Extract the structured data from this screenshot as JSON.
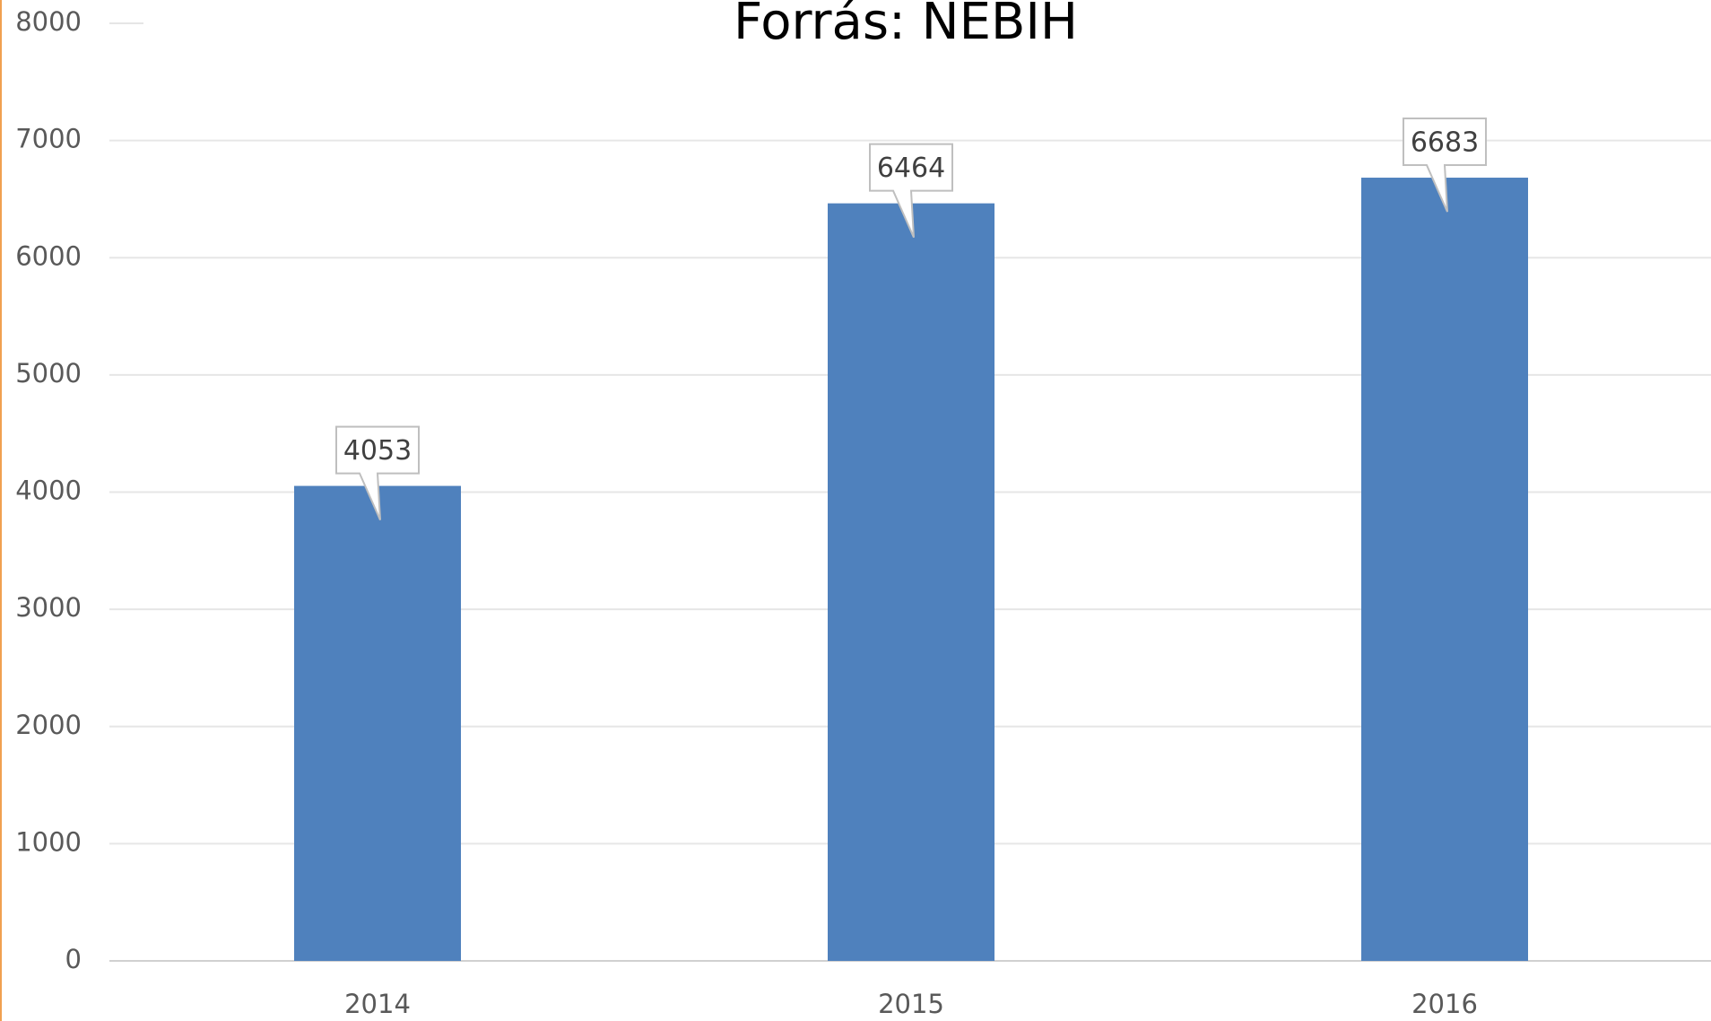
{
  "chart_data": {
    "type": "bar",
    "title": "Forrás: NÉBIH",
    "categories": [
      "2014",
      "2015",
      "2016"
    ],
    "values": [
      4053,
      6464,
      6683
    ],
    "color": "#4f81bd",
    "ylim": [
      0,
      8000
    ],
    "yticks": [
      0,
      1000,
      2000,
      3000,
      4000,
      5000,
      6000,
      7000,
      8000
    ],
    "grid": true,
    "data_labels": true
  }
}
